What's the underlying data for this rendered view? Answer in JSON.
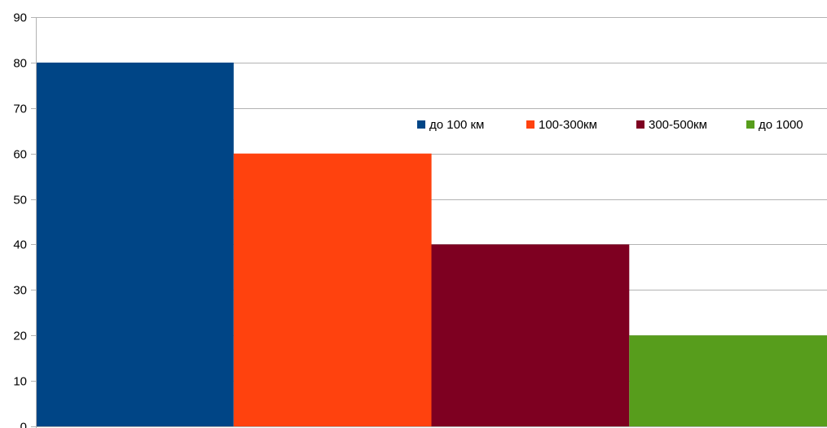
{
  "chart_data": {
    "type": "bar",
    "title": "",
    "xlabel": "",
    "ylabel": "",
    "ylim": [
      0,
      90
    ],
    "y_ticks": [
      "0",
      "10",
      "20",
      "30",
      "40",
      "50",
      "60",
      "70",
      "80",
      "90"
    ],
    "grid": true,
    "legend_position": "right",
    "series": [
      {
        "name": "до 100 км",
        "values": [
          80
        ],
        "color": "#004586"
      },
      {
        "name": "100-300км",
        "values": [
          60
        ],
        "color": "#ff420e"
      },
      {
        "name": "300-500км",
        "values": [
          40
        ],
        "color": "#7e0021"
      },
      {
        "name": "до 1000",
        "values": [
          20
        ],
        "color": "#579d1c"
      }
    ]
  }
}
